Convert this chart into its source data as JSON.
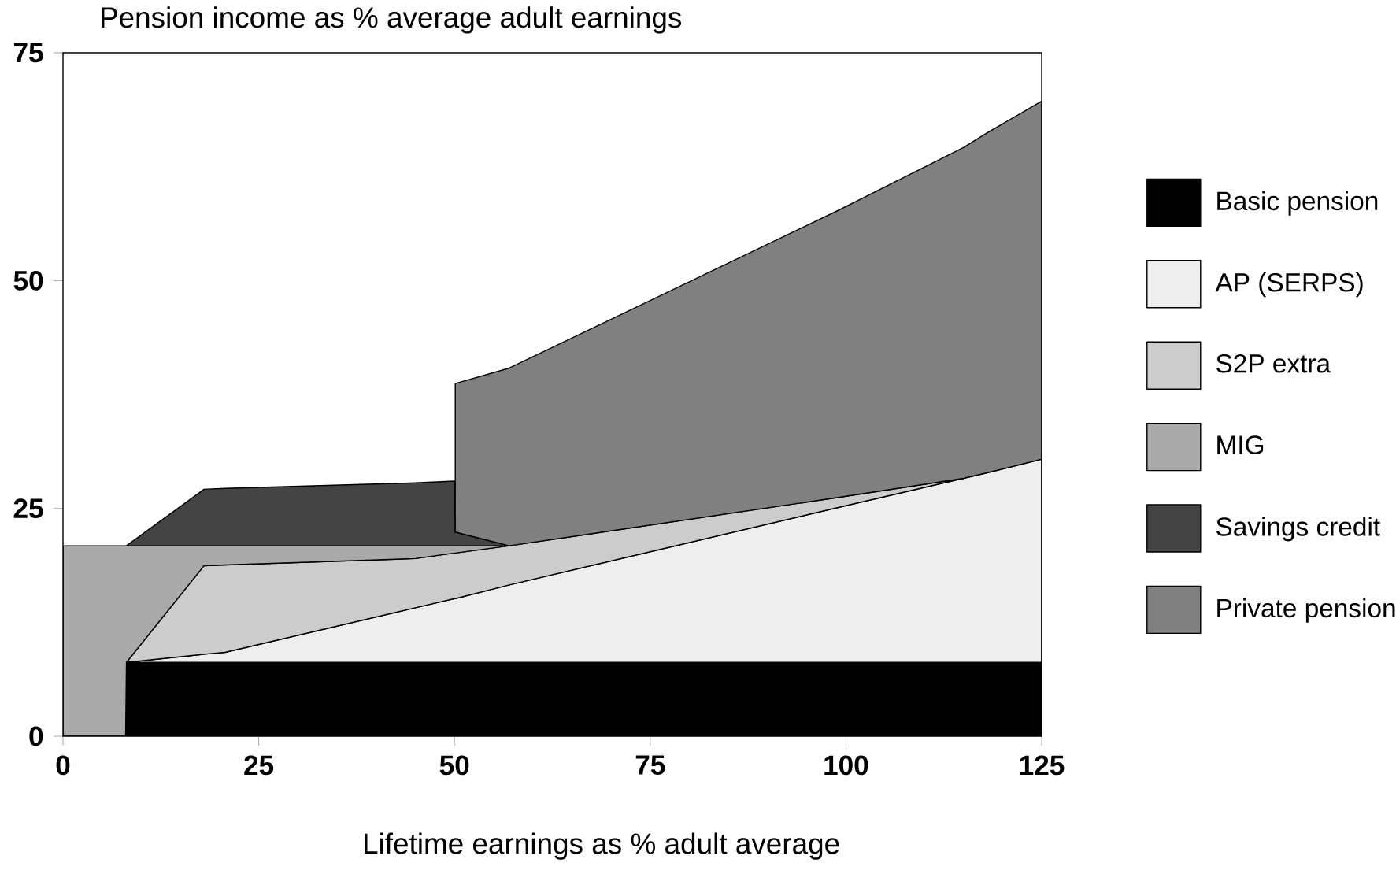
{
  "chart_data": {
    "type": "area",
    "stacked": true,
    "ylabel": "Pension income as % average adult earnings",
    "xlabel": "Lifetime earnings as % adult average",
    "x": [
      0,
      8,
      8.1,
      18,
      20.7,
      45,
      50,
      50.1,
      57,
      99,
      115,
      118,
      125
    ],
    "xlim": [
      0,
      125
    ],
    "ylim": [
      0,
      75
    ],
    "xticks": [
      0,
      25,
      50,
      75,
      100,
      125
    ],
    "yticks": [
      0,
      25,
      50,
      75
    ],
    "grid": false,
    "legend": "right",
    "series": [
      {
        "name": "Basic pension",
        "color": "#000000",
        "values": [
          null,
          0,
          8.1,
          8.1,
          8.1,
          8.1,
          8.1,
          8.1,
          8.1,
          8.1,
          8.1,
          8.1,
          8.1
        ]
      },
      {
        "name": "AP (SERPS)",
        "color": "#eeeeee",
        "values": [
          null,
          null,
          0,
          0.9,
          1.1,
          6.0,
          7.0,
          7.0,
          8.5,
          17.0,
          20.2,
          20.8,
          22.3
        ]
      },
      {
        "name": "S2P extra",
        "color": "#cccccc",
        "values": [
          null,
          null,
          0,
          9.7,
          9.6,
          5.4,
          5.0,
          5.0,
          4.3,
          1.1,
          0,
          null,
          null
        ]
      },
      {
        "name": "MIG",
        "color": "#aaaaaa",
        "values": [
          20.9,
          20.9,
          12.8,
          2.2,
          2.1,
          1.4,
          0.8,
          0.8,
          0,
          null,
          null,
          null,
          null
        ]
      },
      {
        "name": "Savings credit",
        "color": "#444444",
        "values": [
          null,
          null,
          0,
          6.2,
          6.3,
          6.9,
          7.1,
          1.5,
          0,
          null,
          null,
          null,
          null
        ]
      },
      {
        "name": "Private pension",
        "color": "#808080",
        "values": [
          null,
          null,
          null,
          null,
          null,
          null,
          null,
          16.3,
          19.5,
          31.5,
          36.3,
          37.3,
          39.3
        ]
      }
    ]
  }
}
